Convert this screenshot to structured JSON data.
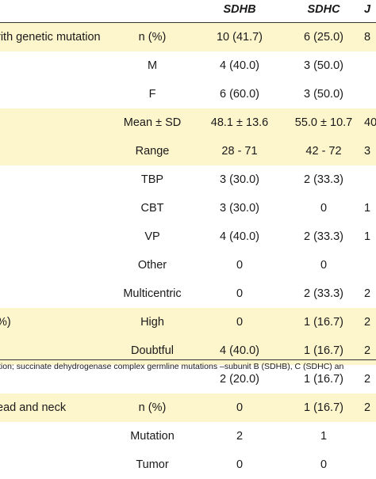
{
  "header": {
    "c0": "",
    "c1": "",
    "c2": "SDHB",
    "c3": "SDHC",
    "c4": "J"
  },
  "rows": [
    {
      "c0": "rith genetic mutation",
      "c1": "n (%)",
      "c2": "10 (41.7)",
      "c3": "6 (25.0)",
      "c4": "8",
      "shaded": true
    },
    {
      "c0": "",
      "c1": "M",
      "c2": "4 (40.0)",
      "c3": "3 (50.0)",
      "c4": "",
      "shaded": false
    },
    {
      "c0": "",
      "c1": "F",
      "c2": "6 (60.0)",
      "c3": "3 (50.0)",
      "c4": "",
      "shaded": false
    },
    {
      "c0": "",
      "c1": "Mean ± SD",
      "c2": "48.1 ± 13.6",
      "c3": "55.0 ± 10.7",
      "c4": "40",
      "shaded": true
    },
    {
      "c0": "",
      "c1": "Range",
      "c2": "28 - 71",
      "c3": "42 - 72",
      "c4": "3",
      "shaded": true
    },
    {
      "c0": "",
      "c1": "TBP",
      "c2": "3 (30.0)",
      "c3": "2 (33.3)",
      "c4": "",
      "shaded": false
    },
    {
      "c0": "",
      "c1": "CBT",
      "c2": "3 (30.0)",
      "c3": "0",
      "c4": "1",
      "shaded": false
    },
    {
      "c0": "",
      "c1": "VP",
      "c2": "4 (40.0)",
      "c3": "2 (33.3)",
      "c4": "1",
      "shaded": false
    },
    {
      "c0": "",
      "c1": "Other",
      "c2": "0",
      "c3": "0",
      "c4": "",
      "shaded": false
    },
    {
      "c0": "",
      "c1": "Multicentric",
      "c2": "0",
      "c3": "2 (33.3)",
      "c4": "2",
      "shaded": false
    },
    {
      "c0": "%)",
      "c1": "High",
      "c2": "0",
      "c3": "1 (16.7)",
      "c4": "2",
      "shaded": true
    },
    {
      "c0": "",
      "c1": "Doubtful",
      "c2": "4 (40.0)",
      "c3": "1 (16.7)",
      "c4": "2",
      "shaded": true
    },
    {
      "c0": "",
      "c1": "",
      "c2": "2 (20.0)",
      "c3": "1 (16.7)",
      "c4": "2",
      "shaded": false
    },
    {
      "c0": "ead and neck",
      "c1": "n (%)",
      "c2": "0",
      "c3": "1 (16.7)",
      "c4": "2",
      "shaded": true
    },
    {
      "c0": "",
      "c1": "Mutation",
      "c2": "2",
      "c3": "1",
      "c4": "",
      "shaded": false
    },
    {
      "c0": "",
      "c1": "Tumor",
      "c2": "0",
      "c3": "0",
      "c4": "",
      "shaded": false
    }
  ],
  "footnote": "tion; succinate dehydrogenase complex germline mutations –subunit B (SDHB), C (SDHC) an"
}
